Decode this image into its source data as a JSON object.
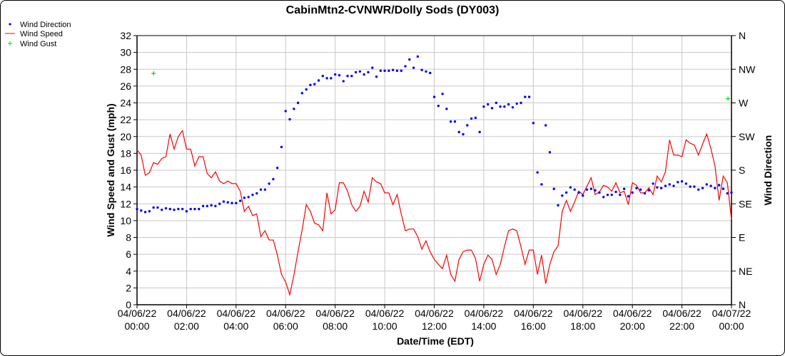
{
  "chart_data": {
    "type": "line",
    "title": "CabinMtn2-CVNWR/Dolly Sods (DY003)",
    "xlabel": "Date/Time (EDT)",
    "ylabel": "Wind Speed and Gust (mph)",
    "y2label": "Wind Direction",
    "ylim": [
      0,
      32
    ],
    "yticks": [
      0,
      2,
      4,
      6,
      8,
      10,
      12,
      14,
      16,
      18,
      20,
      22,
      24,
      26,
      28,
      30,
      32
    ],
    "y2lim": [
      0,
      360
    ],
    "y2ticks": [
      "N",
      "NE",
      "E",
      "SE",
      "S",
      "SW",
      "W",
      "NW",
      "N"
    ],
    "xlim_hours": [
      0,
      24
    ],
    "xticks": [
      {
        "date": "04/06/22",
        "time": "00:00"
      },
      {
        "date": "04/06/22",
        "time": "02:00"
      },
      {
        "date": "04/06/22",
        "time": "04:00"
      },
      {
        "date": "04/06/22",
        "time": "06:00"
      },
      {
        "date": "04/06/22",
        "time": "08:00"
      },
      {
        "date": "04/06/22",
        "time": "10:00"
      },
      {
        "date": "04/06/22",
        "time": "12:00"
      },
      {
        "date": "04/06/22",
        "time": "14:00"
      },
      {
        "date": "04/06/22",
        "time": "16:00"
      },
      {
        "date": "04/06/22",
        "time": "18:00"
      },
      {
        "date": "04/06/22",
        "time": "20:00"
      },
      {
        "date": "04/06/22",
        "time": "22:00"
      },
      {
        "date": "04/07/22",
        "time": "00:00"
      }
    ],
    "grid": true,
    "legend_position": "top-left",
    "interval_minutes": 10,
    "series": [
      {
        "name": "Wind Direction",
        "type": "scatter",
        "color": "#0000ff",
        "axis": "right",
        "unit": "degrees",
        "values": [
          128,
          126,
          124,
          125,
          130,
          130,
          127,
          129,
          128,
          127,
          128,
          128,
          125,
          128,
          128,
          128,
          132,
          132,
          133,
          132,
          135,
          138,
          137,
          136,
          136,
          139,
          143,
          144,
          147,
          149,
          154,
          154,
          162,
          168,
          183,
          211,
          259,
          248,
          262,
          270,
          283,
          288,
          294,
          295,
          300,
          306,
          303,
          303,
          308,
          307,
          299,
          306,
          306,
          311,
          312,
          308,
          311,
          317,
          305,
          313,
          313,
          313,
          314,
          313,
          313,
          319,
          328,
          317,
          332,
          314,
          312,
          310,
          278,
          266,
          282,
          262,
          245,
          245,
          231,
          228,
          240,
          249,
          250,
          231,
          265,
          268,
          263,
          270,
          265,
          265,
          268,
          264,
          269,
          270,
          278,
          278,
          243,
          177,
          161,
          240,
          204,
          155,
          133,
          146,
          150,
          157,
          154,
          150,
          146,
          154,
          155,
          153,
          150,
          144,
          147,
          147,
          151,
          147,
          155,
          145,
          150,
          156,
          154,
          149,
          153,
          162,
          157,
          156,
          159,
          161,
          159,
          164,
          165,
          162,
          158,
          158,
          154,
          156,
          161,
          159,
          156,
          160,
          155,
          149,
          150
        ]
      },
      {
        "name": "Wind Speed",
        "type": "line",
        "color": "#ff0000",
        "axis": "left",
        "unit": "mph",
        "values": [
          18.4,
          17.8,
          15.4,
          15.7,
          16.9,
          16.7,
          17.4,
          17.6,
          20.3,
          18.5,
          20.0,
          20.7,
          18.5,
          18.5,
          16.5,
          17.6,
          17.6,
          15.6,
          15.1,
          15.8,
          14.7,
          14.4,
          14.7,
          14.4,
          14.4,
          13.5,
          11.1,
          11.7,
          10.6,
          10.8,
          8.1,
          8.8,
          7.7,
          7.7,
          5.9,
          3.6,
          2.7,
          1.2,
          3.5,
          6.3,
          8.9,
          11.9,
          11.1,
          9.7,
          9.5,
          8.8,
          13.3,
          10.8,
          11.3,
          14.5,
          14.5,
          13.5,
          11.9,
          11.1,
          11.7,
          13.5,
          12.2,
          15.1,
          14.6,
          14.4,
          13.3,
          13.3,
          11.9,
          13.1,
          10.8,
          8.8,
          9.0,
          9.0,
          8.1,
          6.6,
          7.6,
          6.3,
          5.4,
          4.8,
          4.3,
          5.9,
          3.6,
          2.8,
          5.4,
          6.3,
          6.5,
          6.5,
          5.5,
          2.8,
          4.8,
          5.9,
          5.4,
          3.6,
          4.8,
          6.9,
          8.8,
          9.0,
          8.8,
          6.9,
          4.8,
          6.5,
          6.5,
          3.6,
          5.9,
          2.5,
          4.8,
          6.3,
          7.0,
          11.1,
          12.4,
          11.1,
          12.2,
          13.5,
          13.1,
          14.1,
          15.1,
          13.1,
          13.4,
          14.2,
          14.0,
          13.5,
          14.5,
          13.3,
          13.5,
          11.9,
          14.5,
          14.2,
          13.3,
          13.3,
          13.9,
          13.1,
          15.3,
          14.6,
          15.8,
          19.6,
          17.8,
          17.8,
          17.6,
          19.6,
          19.2,
          19.0,
          17.8,
          19.1,
          20.3,
          18.6,
          16.5,
          12.4,
          15.3,
          14.5,
          10.1
        ]
      },
      {
        "name": "Wind Gust",
        "type": "scatter",
        "color": "#00dd00",
        "axis": "left",
        "unit": "mph",
        "points": [
          {
            "hour": 0.67,
            "value": 27.5
          },
          {
            "hour": 23.86,
            "value": 24.5
          }
        ]
      }
    ]
  }
}
